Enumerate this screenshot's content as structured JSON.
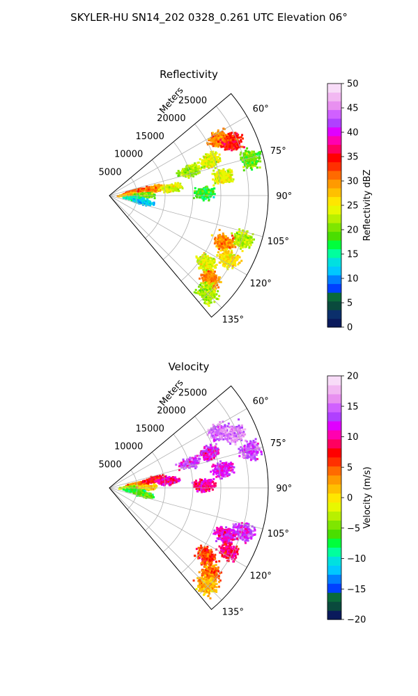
{
  "title": "SKYLER-HU  SN14_202  0328_0.261 UTC Elevation 06°",
  "chart_data": [
    {
      "type": "heatmap",
      "title": "Reflectivity",
      "projection": "polar-sector",
      "radial_axis_label": "Meters",
      "r_ticks": [
        5000,
        10000,
        15000,
        20000,
        25000
      ],
      "r_tick_labels": [
        "5000",
        "10000",
        "15000",
        "20000",
        "25000"
      ],
      "r_max": 28500,
      "theta_range_deg": [
        50,
        140
      ],
      "theta_ticks_deg": [
        60,
        75,
        90,
        105,
        120,
        135
      ],
      "theta_tick_labels": [
        "60°",
        "75°",
        "90°",
        "105°",
        "120°",
        "135°"
      ],
      "grid": true,
      "colorbar": {
        "label": "Reflectivity dBZ",
        "min": 0,
        "max": 50,
        "ticks": [
          0,
          5,
          10,
          15,
          20,
          25,
          30,
          35,
          40,
          45,
          50
        ],
        "tick_labels": [
          "0",
          "5",
          "10",
          "15",
          "20",
          "25",
          "30",
          "35",
          "40",
          "45",
          "50"
        ],
        "colors": [
          "#0a1a5c",
          "#0b2f6b",
          "#0a4a3d",
          "#0a6b3a",
          "#0040ff",
          "#0080ff",
          "#00c8ff",
          "#00e0e0",
          "#00ff9e",
          "#00ff3c",
          "#4ade00",
          "#7fe600",
          "#b8f000",
          "#e8f800",
          "#ffe600",
          "#ffc000",
          "#ff9a00",
          "#ff6a00",
          "#ff3000",
          "#ff0000",
          "#ff0060",
          "#ff00b0",
          "#e000ff",
          "#b040ff",
          "#d060ff",
          "#e890f0",
          "#f2b8f2",
          "#f8dcf8"
        ]
      },
      "echo_regions": [
        {
          "theta": 78,
          "r": 4500,
          "value": 32
        },
        {
          "theta": 80,
          "r": 8000,
          "value": 30
        },
        {
          "theta": 82,
          "r": 11000,
          "value": 24
        },
        {
          "theta": 85,
          "r": 3500,
          "value": 28
        },
        {
          "theta": 88,
          "r": 6000,
          "value": 20
        },
        {
          "theta": 95,
          "r": 4500,
          "value": 14
        },
        {
          "theta": 100,
          "r": 6000,
          "value": 12
        },
        {
          "theta": 62,
          "r": 22000,
          "value": 30
        },
        {
          "theta": 66,
          "r": 24000,
          "value": 34
        },
        {
          "theta": 70,
          "r": 19000,
          "value": 24
        },
        {
          "theta": 72,
          "r": 15000,
          "value": 22
        },
        {
          "theta": 75,
          "r": 26000,
          "value": 20
        },
        {
          "theta": 80,
          "r": 20500,
          "value": 24
        },
        {
          "theta": 88,
          "r": 17000,
          "value": 18
        },
        {
          "theta": 108,
          "r": 25000,
          "value": 22
        },
        {
          "theta": 112,
          "r": 22000,
          "value": 30
        },
        {
          "theta": 118,
          "r": 24000,
          "value": 26
        },
        {
          "theta": 125,
          "r": 21000,
          "value": 24
        },
        {
          "theta": 130,
          "r": 23500,
          "value": 30
        },
        {
          "theta": 135,
          "r": 24500,
          "value": 22
        }
      ]
    },
    {
      "type": "heatmap",
      "title": "Velocity",
      "projection": "polar-sector",
      "radial_axis_label": "Meters",
      "r_ticks": [
        5000,
        10000,
        15000,
        20000,
        25000
      ],
      "r_tick_labels": [
        "5000",
        "10000",
        "15000",
        "20000",
        "25000"
      ],
      "r_max": 28500,
      "theta_range_deg": [
        50,
        140
      ],
      "theta_ticks_deg": [
        60,
        75,
        90,
        105,
        120,
        135
      ],
      "theta_tick_labels": [
        "60°",
        "75°",
        "90°",
        "105°",
        "120°",
        "135°"
      ],
      "grid": true,
      "colorbar": {
        "label": "Velocity (m/s)",
        "min": -20,
        "max": 20,
        "ticks": [
          -20,
          -15,
          -10,
          -5,
          0,
          5,
          10,
          15,
          20
        ],
        "tick_labels": [
          "−20",
          "−15",
          "−10",
          "−5",
          "0",
          "5",
          "10",
          "15",
          "20"
        ],
        "colors": [
          "#0a1a5c",
          "#0a4a3d",
          "#0a6b3a",
          "#0040ff",
          "#0080ff",
          "#00c8ff",
          "#00e0e0",
          "#00ff9e",
          "#00ff3c",
          "#4ade00",
          "#7fe600",
          "#b8f000",
          "#e8f800",
          "#ffe600",
          "#ffc000",
          "#ff9a00",
          "#ff6a00",
          "#ff3000",
          "#ff0000",
          "#ff0060",
          "#ff00b0",
          "#e000ff",
          "#b040ff",
          "#d060ff",
          "#e890f0",
          "#f2b8f2",
          "#f8dcf8"
        ]
      },
      "echo_regions": [
        {
          "theta": 80,
          "r": 5000,
          "value": 3
        },
        {
          "theta": 78,
          "r": 8000,
          "value": 7
        },
        {
          "theta": 82,
          "r": 10500,
          "value": 10
        },
        {
          "theta": 86,
          "r": 3500,
          "value": -3
        },
        {
          "theta": 88,
          "r": 6500,
          "value": 1
        },
        {
          "theta": 95,
          "r": 4500,
          "value": -7
        },
        {
          "theta": 100,
          "r": 6000,
          "value": -5
        },
        {
          "theta": 62,
          "r": 22000,
          "value": 15
        },
        {
          "theta": 66,
          "r": 24500,
          "value": 16
        },
        {
          "theta": 70,
          "r": 19000,
          "value": 12
        },
        {
          "theta": 72,
          "r": 15000,
          "value": 13
        },
        {
          "theta": 75,
          "r": 26000,
          "value": 14
        },
        {
          "theta": 80,
          "r": 20500,
          "value": 12
        },
        {
          "theta": 88,
          "r": 17000,
          "value": 10
        },
        {
          "theta": 108,
          "r": 25000,
          "value": 13
        },
        {
          "theta": 112,
          "r": 22000,
          "value": 11
        },
        {
          "theta": 118,
          "r": 24000,
          "value": 9
        },
        {
          "theta": 125,
          "r": 21000,
          "value": 6
        },
        {
          "theta": 130,
          "r": 23500,
          "value": 4
        },
        {
          "theta": 135,
          "r": 24500,
          "value": 2
        }
      ]
    }
  ]
}
